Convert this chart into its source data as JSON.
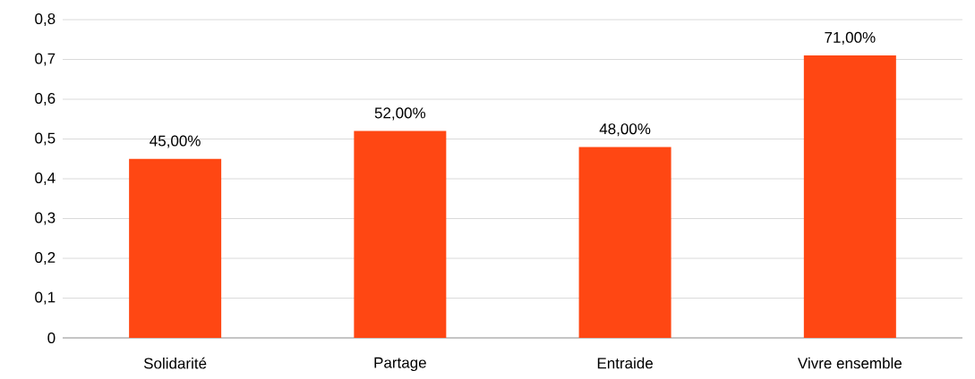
{
  "chart_data": {
    "type": "bar",
    "categories": [
      "Solidarité",
      "Partage",
      "Entraide",
      "Vivre ensemble"
    ],
    "values": [
      0.45,
      0.52,
      0.48,
      0.71
    ],
    "value_labels": [
      "45,00%",
      "52,00%",
      "48,00%",
      "71,00%"
    ],
    "color": "#ff4713",
    "ylim": [
      0,
      0.8
    ],
    "yticks": [
      0,
      {
        "value": 0.1,
        "label": "0,1"
      },
      {
        "value": 0.2,
        "label": "0,2"
      },
      {
        "value": 0.3,
        "label": "0,3"
      },
      {
        "value": 0.4,
        "label": "0,4"
      },
      {
        "value": 0.5,
        "label": "0,5"
      },
      {
        "value": 0.6,
        "label": "0,6"
      },
      {
        "value": 0.7,
        "label": "0,7"
      },
      {
        "value": 0.8,
        "label": "0,8"
      }
    ],
    "grid": "y"
  }
}
